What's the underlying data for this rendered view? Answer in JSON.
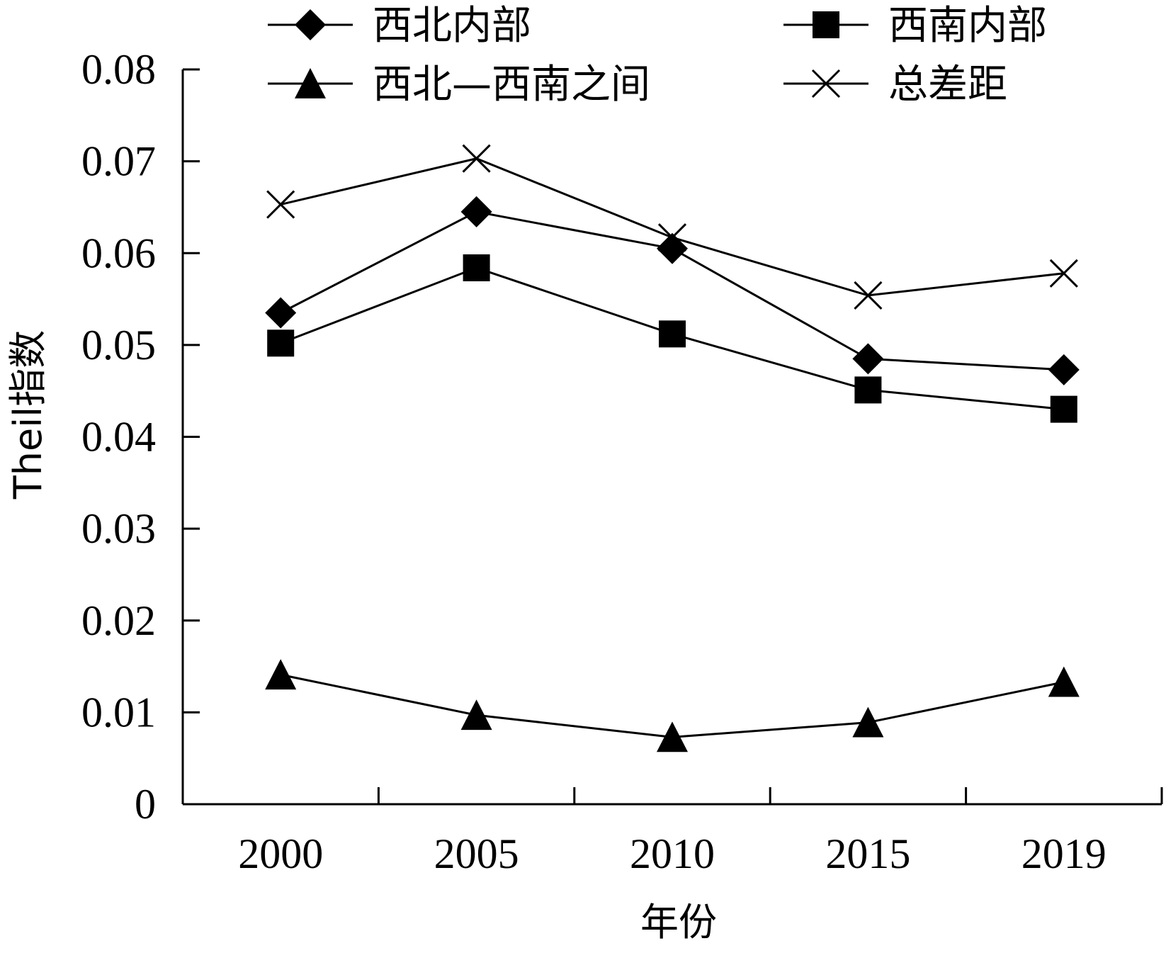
{
  "chart_data": {
    "type": "line",
    "xlabel": "年份",
    "ylabel": "Theil指数",
    "categories": [
      "2000",
      "2005",
      "2010",
      "2015",
      "2019"
    ],
    "ylim": [
      0,
      0.08
    ],
    "yticks": [
      "0",
      "0.01",
      "0.02",
      "0.03",
      "0.04",
      "0.05",
      "0.06",
      "0.07",
      "0.08"
    ],
    "legend_position": "top",
    "grid": false,
    "series": [
      {
        "name": "西北内部",
        "marker": "diamond",
        "values": [
          0.0535,
          0.0645,
          0.0605,
          0.0485,
          0.0473
        ]
      },
      {
        "name": "西南内部",
        "marker": "square",
        "values": [
          0.0502,
          0.0584,
          0.0512,
          0.0451,
          0.043
        ]
      },
      {
        "name": "西北—西南之间",
        "marker": "triangle",
        "values": [
          0.0141,
          0.0097,
          0.0073,
          0.0089,
          0.0133
        ]
      },
      {
        "name": "总差距",
        "marker": "cross",
        "values": [
          0.0653,
          0.0703,
          0.0617,
          0.0554,
          0.0578
        ]
      }
    ]
  }
}
